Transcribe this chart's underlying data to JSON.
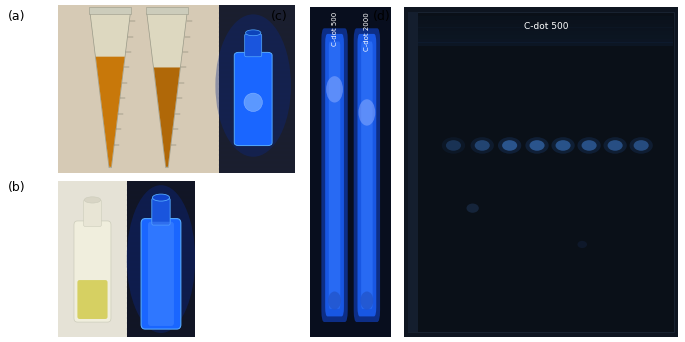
{
  "fig_width": 6.85,
  "fig_height": 3.42,
  "dpi": 100,
  "panel_label_fontsize": 9,
  "c_label_left": "C-dot 500",
  "c_label_right": "C-dot 2000",
  "d_title": "C-dot 500",
  "colors": {
    "white_bg": "#ffffff",
    "beige_bg": "#d8cdb8",
    "dark_bg": "#1a1a2e",
    "dark_bg2": "#0d1220",
    "amber1": "#c8780a",
    "amber2": "#b06808",
    "tube_clear": "#e8e5d5",
    "blue_lane": "#1a55dd",
    "blue_bright": "#3377ff",
    "blue_glow": "#55aaff",
    "dot_blue": "#4488bb",
    "dot_glow": "#6699cc",
    "d_frame": "#111824",
    "d_inner": "#0a0f1e",
    "d_top_glow": "#0d1a35"
  }
}
